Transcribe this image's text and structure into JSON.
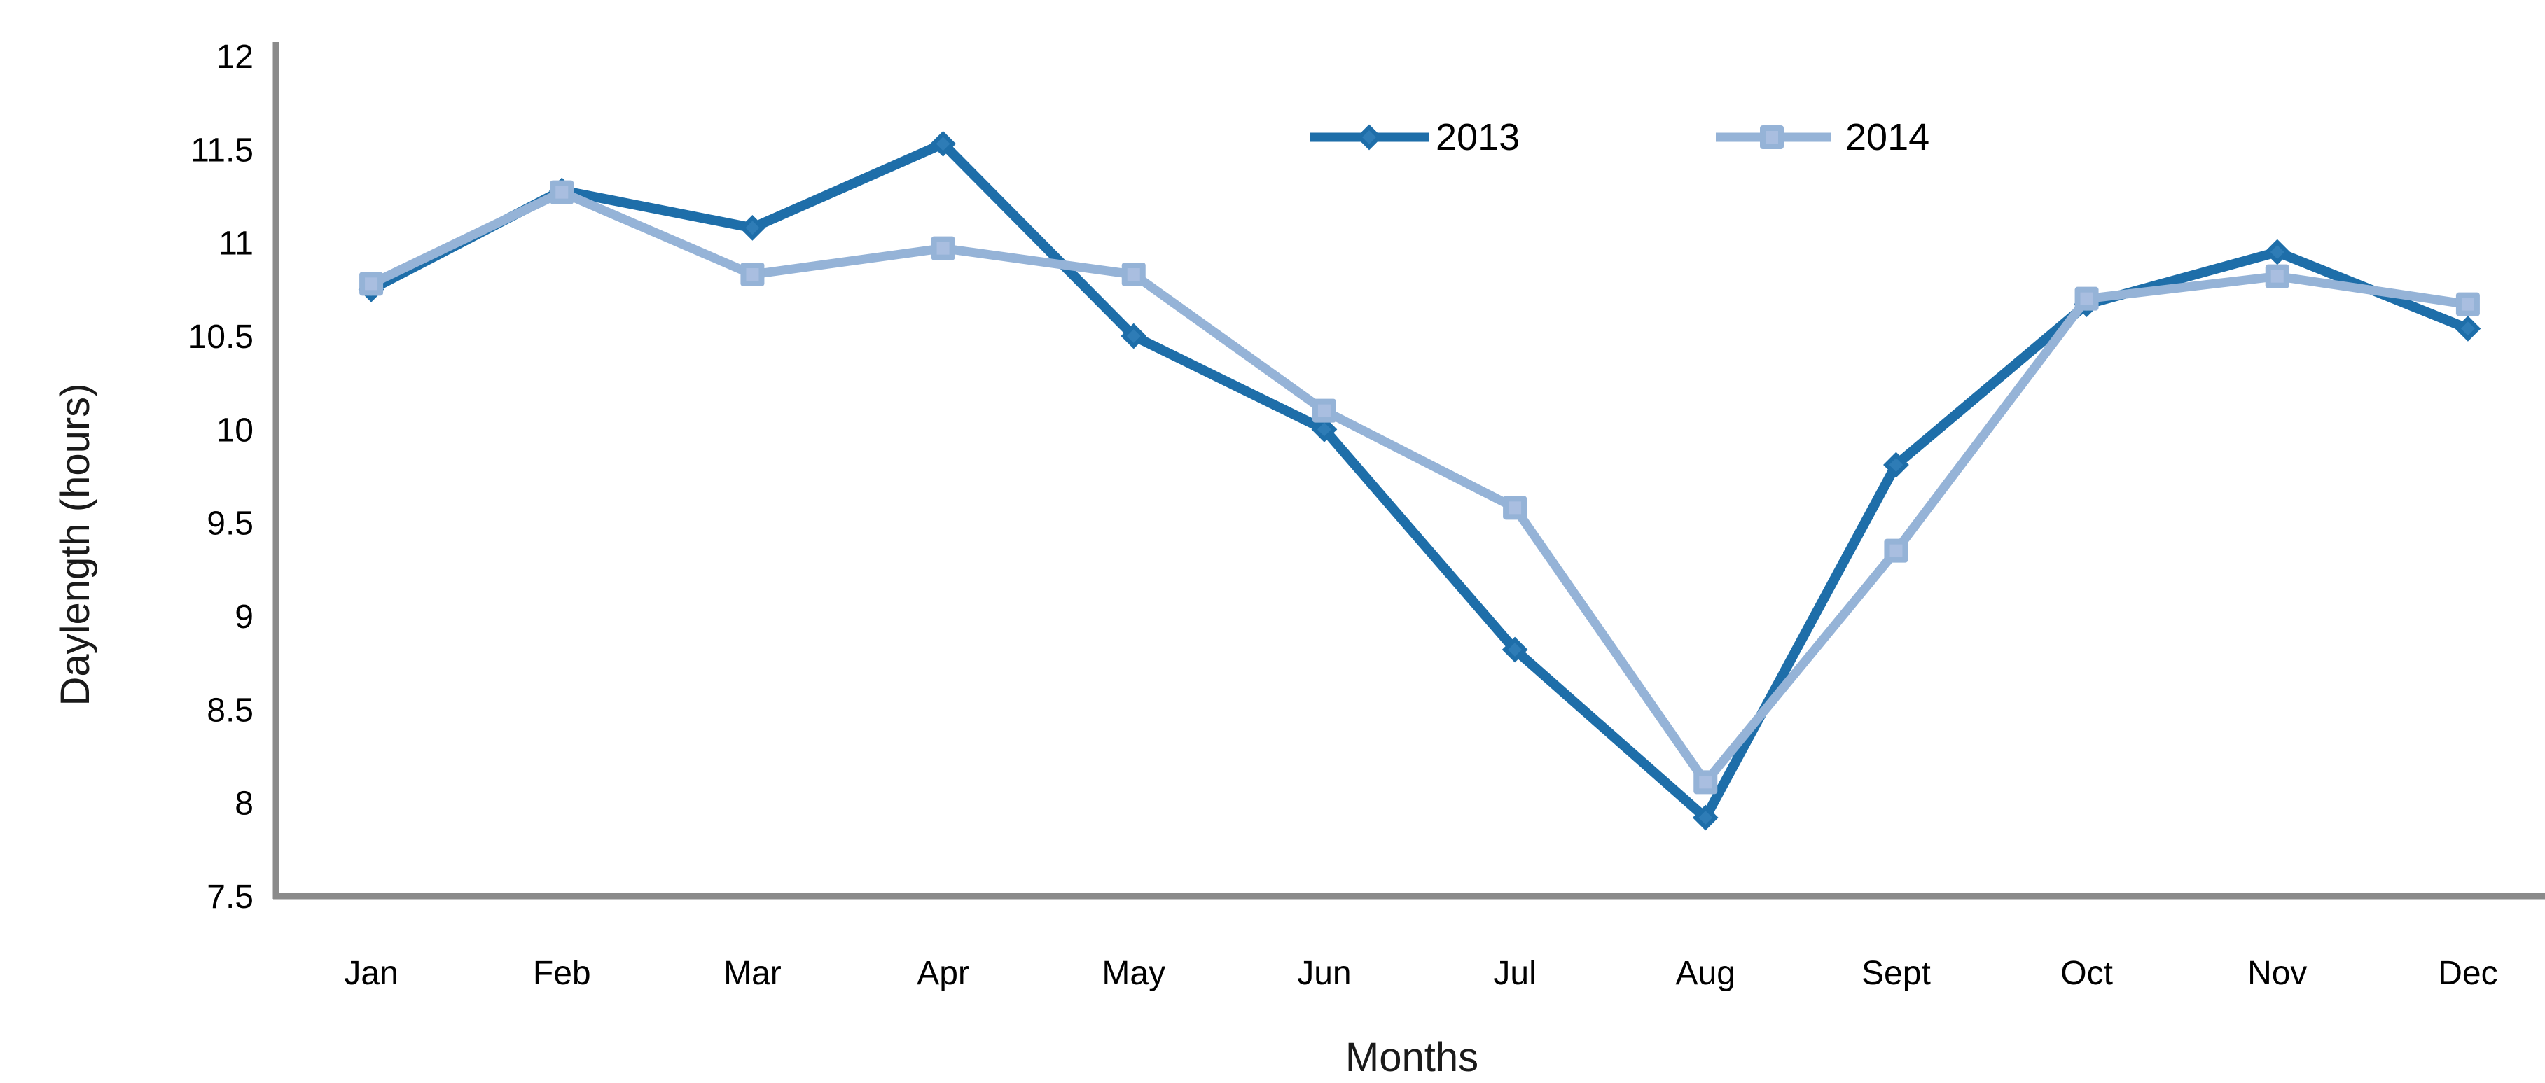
{
  "chart_data": {
    "type": "line",
    "title": "",
    "xlabel": "Months",
    "ylabel": "Daylength (hours)",
    "categories": [
      "Jan",
      "Feb",
      "Mar",
      "Apr",
      "May",
      "Jun",
      "Jul",
      "Aug",
      "Sept",
      "Oct",
      "Nov",
      "Dec"
    ],
    "series": [
      {
        "name": "2013",
        "marker": "diamond",
        "color": "#1E6EA9",
        "marker_inner_color": "#2E7CB6",
        "values": [
          10.75,
          11.28,
          11.08,
          11.53,
          10.5,
          10.0,
          8.82,
          7.92,
          9.81,
          10.67,
          10.95,
          10.54
        ]
      },
      {
        "name": "2014",
        "marker": "square",
        "color": "#95B3D7",
        "marker_inner_color": "#A9BEE0",
        "values": [
          10.78,
          11.27,
          10.83,
          10.97,
          10.83,
          10.1,
          9.58,
          8.11,
          9.35,
          10.7,
          10.82,
          10.67
        ]
      }
    ],
    "ylim": [
      7.5,
      12
    ],
    "ytick_step": 0.5,
    "ytick_labels": [
      "7.5",
      "8",
      "8.5",
      "9",
      "9.5",
      "10",
      "10.5",
      "11",
      "11.5",
      "12"
    ],
    "grid": false,
    "legend_position": "top-center",
    "axis_color": "#8A8A8A",
    "text_color": "#000000",
    "background": "#FFFFFF"
  }
}
